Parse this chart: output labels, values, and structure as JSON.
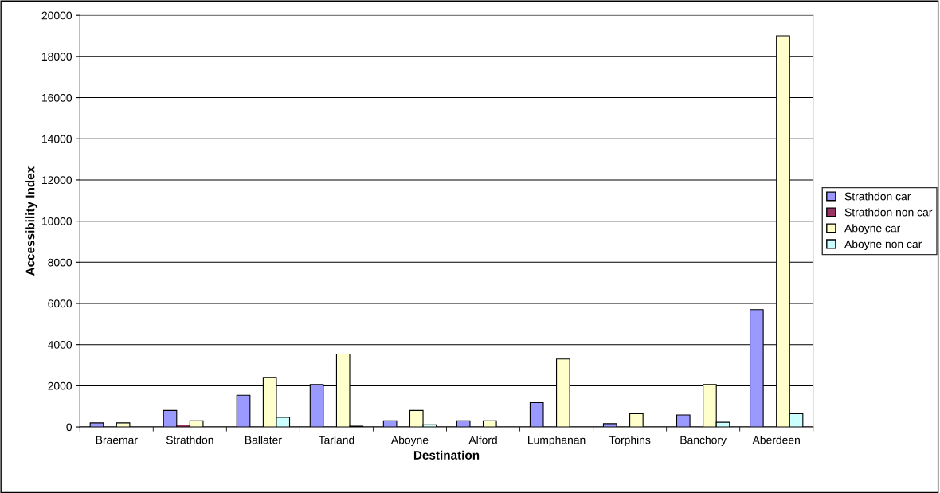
{
  "chart_data": {
    "type": "bar",
    "xlabel": "Destination",
    "ylabel": "Accessibility Index",
    "categories": [
      "Braemar",
      "Strathdon",
      "Ballater",
      "Tarland",
      "Aboyne",
      "Alford",
      "Lumphanan",
      "Torphins",
      "Banchory",
      "Aberdeen"
    ],
    "series": [
      {
        "name": "Strathdon car",
        "color": "#9999ff",
        "values": [
          200,
          800,
          1540,
          2060,
          300,
          300,
          1180,
          160,
          580,
          5700
        ]
      },
      {
        "name": "Strathdon non car",
        "color": "#993366",
        "values": [
          null,
          100,
          null,
          null,
          null,
          null,
          null,
          null,
          null,
          null
        ]
      },
      {
        "name": "Aboyne car",
        "color": "#ffffcc",
        "values": [
          200,
          300,
          2410,
          3540,
          800,
          300,
          3300,
          640,
          2060,
          19000
        ]
      },
      {
        "name": "Aboyne non car",
        "color": "#ccffff",
        "values": [
          null,
          null,
          470,
          40,
          110,
          null,
          null,
          null,
          230,
          640
        ]
      }
    ],
    "ylim": [
      0,
      20000
    ],
    "yticks": [
      0,
      2000,
      4000,
      6000,
      8000,
      10000,
      12000,
      14000,
      16000,
      18000,
      20000
    ],
    "grid": "y",
    "legend": "right"
  }
}
